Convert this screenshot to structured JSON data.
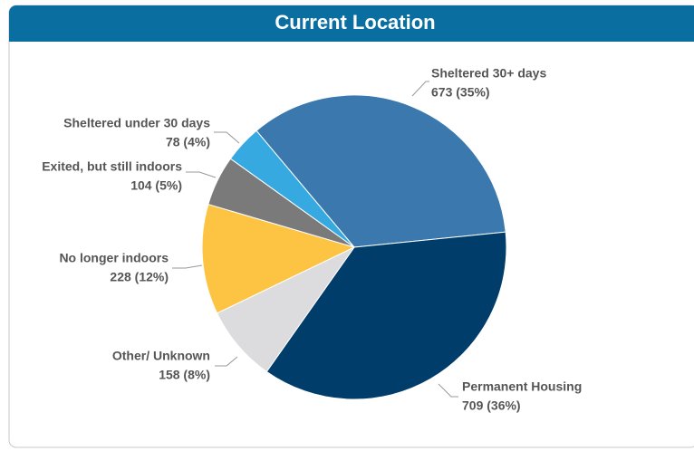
{
  "chart_data": {
    "type": "pie",
    "title": "Current Location",
    "categories": [
      "Sheltered 30+ days",
      "Permanent Housing",
      "Other/ Unknown",
      "No longer indoors",
      "Exited, but still indoors",
      "Sheltered under 30 days"
    ],
    "values": [
      673,
      709,
      158,
      228,
      104,
      78
    ],
    "value_labels": [
      "673 (35%)",
      "709 (36%)",
      "158 (8%)",
      "228 (12%)",
      "104 (5%)",
      "78 (4%)"
    ],
    "colors": [
      "#3a78ad",
      "#003d6b",
      "#dcdcde",
      "#fdc443",
      "#7a7a7a",
      "#36a9e1"
    ]
  }
}
